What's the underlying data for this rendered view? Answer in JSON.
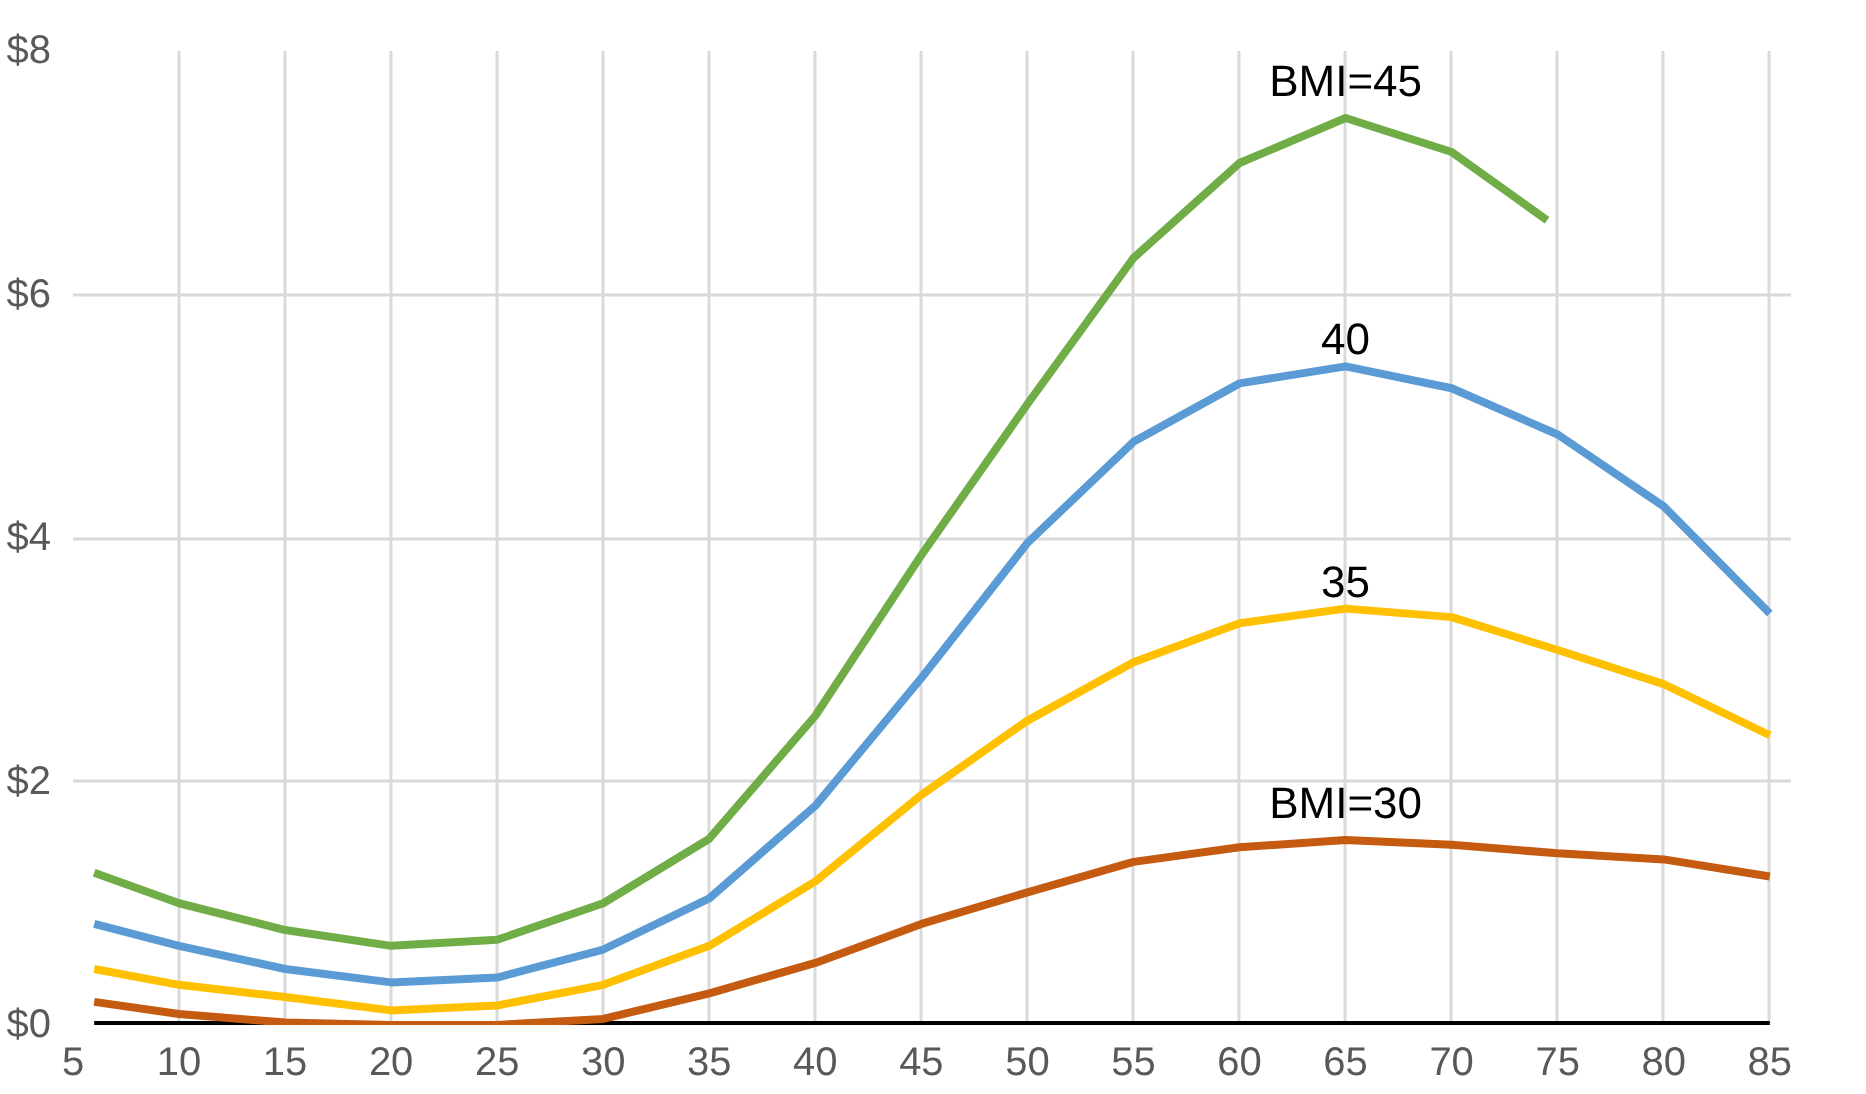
{
  "chart_data": {
    "type": "line",
    "xlim": [
      5,
      86
    ],
    "ylim": [
      0,
      8
    ],
    "xticks": [
      5,
      10,
      15,
      20,
      25,
      30,
      35,
      40,
      45,
      50,
      55,
      60,
      65,
      70,
      75,
      80,
      85
    ],
    "yticks": [
      {
        "value": 0,
        "label": "$0"
      },
      {
        "value": 2,
        "label": "$2"
      },
      {
        "value": 4,
        "label": "$4"
      },
      {
        "value": 6,
        "label": "$6"
      },
      {
        "value": 8,
        "label": "$8"
      }
    ],
    "grid": true,
    "line_style": "solid",
    "marker": "none",
    "series": [
      {
        "color": "#000000",
        "x": [
          6,
          85
        ],
        "values": [
          0,
          0
        ]
      },
      {
        "name": "BMI=30",
        "color": "#c55a11",
        "x": [
          6,
          10,
          15,
          20,
          25,
          30,
          35,
          40,
          45,
          50,
          55,
          60,
          65,
          70,
          75,
          80,
          85
        ],
        "values": [
          0.19,
          0.09,
          0.02,
          0,
          0,
          0.05,
          0.26,
          0.51,
          0.83,
          1.09,
          1.34,
          1.46,
          1.52,
          1.48,
          1.41,
          1.36,
          1.22
        ]
      },
      {
        "name": "35",
        "color": "#ffc000",
        "x": [
          6,
          10,
          15,
          20,
          25,
          30,
          35,
          40,
          45,
          50,
          55,
          60,
          65,
          70,
          75,
          80,
          85
        ],
        "values": [
          0.46,
          0.33,
          0.23,
          0.12,
          0.16,
          0.33,
          0.65,
          1.18,
          1.89,
          2.5,
          2.98,
          3.3,
          3.42,
          3.35,
          3.08,
          2.8,
          2.38
        ]
      },
      {
        "name": "40",
        "color": "#5b9bd5",
        "x": [
          6,
          10,
          15,
          20,
          25,
          30,
          35,
          40,
          45,
          50,
          55,
          60,
          65,
          70,
          75,
          80,
          85
        ],
        "values": [
          0.83,
          0.65,
          0.46,
          0.35,
          0.39,
          0.62,
          1.04,
          1.8,
          2.85,
          3.96,
          4.79,
          5.27,
          5.41,
          5.23,
          4.85,
          4.26,
          3.38
        ]
      },
      {
        "name": "BMI=45",
        "color": "#70ad47",
        "x": [
          6,
          10,
          15,
          20,
          25,
          30,
          35,
          40,
          45,
          50,
          55,
          60,
          65,
          70,
          74.5
        ],
        "values": [
          1.25,
          1.0,
          0.78,
          0.65,
          0.7,
          1.0,
          1.53,
          2.54,
          3.86,
          5.1,
          6.3,
          7.08,
          7.45,
          7.17,
          6.61
        ]
      }
    ]
  }
}
